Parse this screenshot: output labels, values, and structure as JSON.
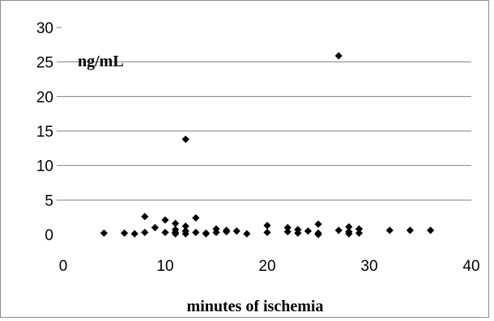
{
  "chart_data": {
    "type": "scatter",
    "title": "",
    "xlabel": "minutes of ischemia",
    "ylabel": "ng/mL",
    "xlim": [
      0,
      40
    ],
    "ylim": [
      0,
      30
    ],
    "x_ticks": [
      "0",
      "10",
      "20",
      "30",
      "40"
    ],
    "y_ticks": [
      "0",
      "5",
      "10",
      "15",
      "20",
      "25",
      "30"
    ],
    "grid": "horizontal",
    "marker": "diamond",
    "marker_color": "#000000",
    "series": [
      {
        "points": [
          [
            4,
            0.2
          ],
          [
            6,
            0.2
          ],
          [
            7,
            0.1
          ],
          [
            8,
            0.3
          ],
          [
            8,
            2.6
          ],
          [
            9,
            1.0
          ],
          [
            10,
            2.1
          ],
          [
            10,
            0.3
          ],
          [
            11,
            1.6
          ],
          [
            11,
            0.7
          ],
          [
            11,
            0.1
          ],
          [
            11,
            0.3
          ],
          [
            12,
            1.2
          ],
          [
            12,
            0.5
          ],
          [
            12,
            0.1
          ],
          [
            12,
            13.8
          ],
          [
            13,
            2.4
          ],
          [
            13,
            0.3
          ],
          [
            14,
            0.2
          ],
          [
            14,
            0.1
          ],
          [
            15,
            0.8
          ],
          [
            15,
            0.3
          ],
          [
            16,
            0.4
          ],
          [
            16,
            0.6
          ],
          [
            17,
            0.5
          ],
          [
            18,
            0.1
          ],
          [
            20,
            1.3
          ],
          [
            20,
            0.3
          ],
          [
            22,
            1.0
          ],
          [
            22,
            0.4
          ],
          [
            23,
            0.7
          ],
          [
            23,
            0.2
          ],
          [
            24,
            0.5
          ],
          [
            25,
            1.5
          ],
          [
            25,
            0.2
          ],
          [
            25,
            0.0
          ],
          [
            27,
            25.9
          ],
          [
            27,
            0.6
          ],
          [
            28,
            1.1
          ],
          [
            28,
            0.4
          ],
          [
            28,
            0.1
          ],
          [
            29,
            0.8
          ],
          [
            29,
            0.2
          ],
          [
            32,
            0.6
          ],
          [
            34,
            0.6
          ],
          [
            36,
            0.6
          ]
        ]
      }
    ]
  }
}
